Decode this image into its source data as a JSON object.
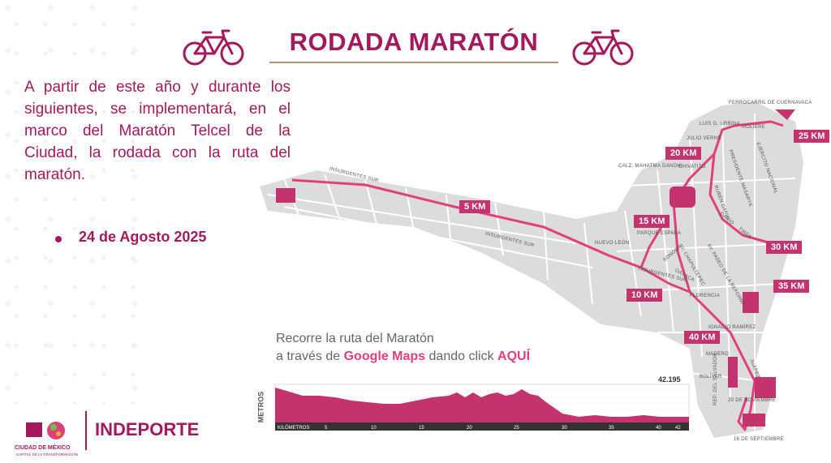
{
  "header": {
    "title": "RODADA MARATÓN",
    "accent_color": "#a3195b",
    "icons": [
      "bicycle-icon-left",
      "bicycle-icon-right"
    ]
  },
  "intro_text": "A partir de este año y durante los siguientes, se implementará, en el marco del Maratón Telcel de la Ciudad, la rodada con la ruta del maratón.",
  "event_date": "24 de Agosto 2025",
  "map": {
    "km_markers": [
      "5 KM",
      "10 KM",
      "15 KM",
      "20 KM",
      "25 KM",
      "30 KM",
      "35 KM",
      "40 KM"
    ],
    "streets": {
      "insurgentes_sur_1": "INSURGENTES SUR",
      "insurgentes_sur_2": "INSURGENTES SUR",
      "insurgentes_sur_3": "INSURGENTES SUR",
      "ferrocarril": "FERROCARRIL DE CUERNAVACA",
      "luis_urbina": "LUIS G. URBINA",
      "moliere": "MOLIERE",
      "julio_verne": "JULIO VERNE",
      "ejercito": "EJÉRCITO NACIONAL",
      "mahatma": "CALZ. MAHATMA GANDHI",
      "chivatito": "CHIVATITO",
      "presidente": "PRESIDENTE MASARYK",
      "ruben": "RUBÉN DARÍO",
      "dario": "DARÍO",
      "tiber": "TIBER",
      "parque": "PARQUE ESPAÑA",
      "nuevo_leon": "NUEVO LEÓN",
      "sonora": "SONORA",
      "chapultepec": "AV. CHAPULTEPEC",
      "reforma": "AV. PASEO DE LA REFORMA",
      "oaxaca": "OAXACA",
      "florencia": "FLORENCIA",
      "ignacio": "IGNACIO RAMÍREZ",
      "madero": "MADERO",
      "juarez": "JUÁREZ",
      "bolivar": "BOLÍVAR",
      "noviembre": "20 DE NOVIEMBRE",
      "salvador": "REP. DEL SALVADOR",
      "septiembre": "16 DE SEPTIEMBRE"
    }
  },
  "cta": {
    "line1": "Recorre la ruta del Maratón",
    "line2_prefix": "a través de",
    "google_maps": "Google Maps",
    "line2_mid": "dando click",
    "aqui": "AQUÍ"
  },
  "elevation": {
    "axis_label": "METROS",
    "x_label": "KILÓMETROS",
    "total": "42.195",
    "x_ticks": [
      "5",
      "10",
      "15",
      "20",
      "25",
      "30",
      "35",
      "40",
      "42"
    ]
  },
  "footer": {
    "cdmx_name": "CIUDAD DE MÉXICO",
    "cdmx_sub": "CAPITAL DE LA TRANSFORMACIÓN",
    "indeporte": "INDEPORTE"
  }
}
